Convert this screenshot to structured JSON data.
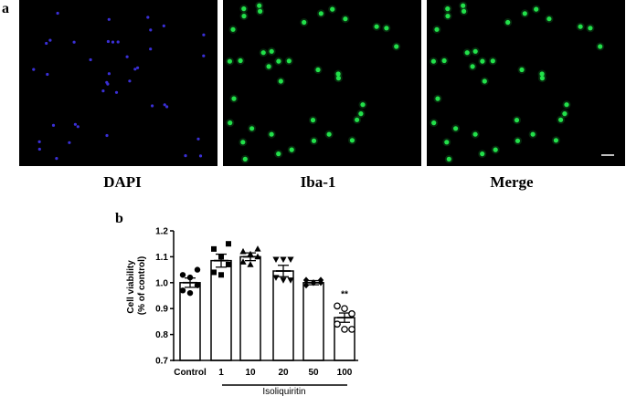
{
  "panel_a": {
    "letter": "a",
    "images": [
      {
        "label": "DAPI",
        "channel": "blue",
        "color": "#3a2fd6"
      },
      {
        "label": "Iba-1",
        "channel": "green",
        "color": "#22e04a"
      },
      {
        "label": "Merge",
        "channel": "green",
        "color": "#22e04a"
      }
    ]
  },
  "panel_b": {
    "letter": "b"
  },
  "chart_data": {
    "type": "bar",
    "categories": [
      "Control",
      "1",
      "10",
      "20",
      "50",
      "100"
    ],
    "values": [
      1.0,
      1.085,
      1.1,
      1.045,
      1.0,
      0.865
    ],
    "errors": [
      0.018,
      0.025,
      0.015,
      0.022,
      0.008,
      0.018
    ],
    "points": [
      [
        1.03,
        1.02,
        0.99,
        0.97,
        0.96,
        1.05
      ],
      [
        1.13,
        1.1,
        1.07,
        1.04,
        1.03,
        1.15
      ],
      [
        1.12,
        1.11,
        1.1,
        1.08,
        1.07,
        1.13
      ],
      [
        1.09,
        1.09,
        1.09,
        1.02,
        1.01,
        1.01
      ],
      [
        1.01,
        1.0,
        1.0,
        0.99,
        1.0,
        1.01
      ],
      [
        0.91,
        0.9,
        0.88,
        0.84,
        0.82,
        0.82
      ]
    ],
    "markers": [
      "circle",
      "square",
      "triangle-up",
      "triangle-down",
      "diamond",
      "open-circle"
    ],
    "ylabel": "Cell viability\n(% of control)",
    "ylim": [
      0.7,
      1.2
    ],
    "yticks": [
      "0.7",
      "0.8",
      "0.9",
      "1.0",
      "1.1",
      "1.2"
    ],
    "group_label": "Isoliquiritin",
    "annotations": [
      {
        "category": "100",
        "text": "**"
      }
    ],
    "grid": false,
    "legend": "none"
  }
}
